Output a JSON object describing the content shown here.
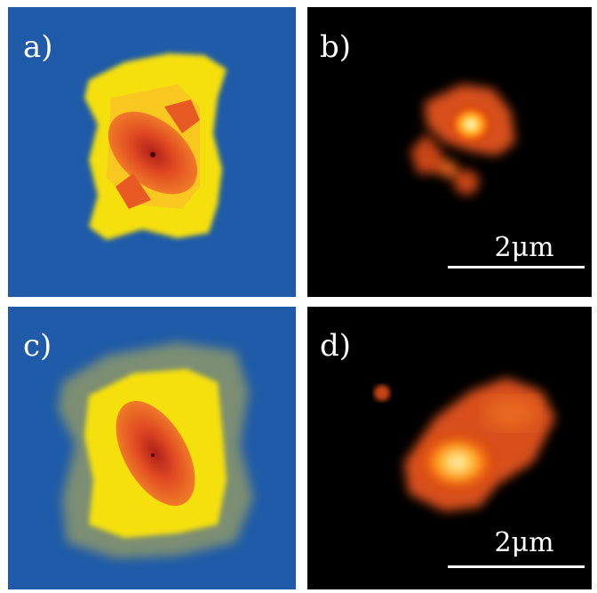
{
  "panels": [
    {
      "label": "a)"
    },
    {
      "label": "b)",
      "scale_bar": "2μm"
    },
    {
      "label": "c)"
    },
    {
      "label": "d)",
      "scale_bar": "2μm"
    }
  ]
}
